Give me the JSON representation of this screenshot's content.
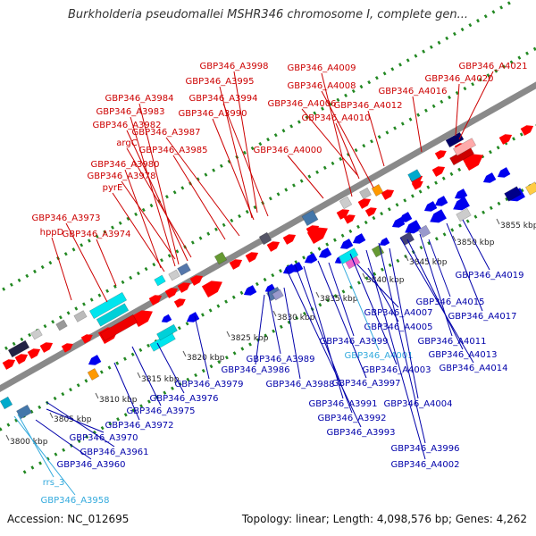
{
  "title": "Burkholderia pseudomallei MSHR346 chromosome I, complete gen...",
  "footer": {
    "accession": "Accession: NC_012695",
    "topology": "Topology: linear; Length: 4,098,576 bp; Genes: 4,262"
  },
  "colors": {
    "top_label": "#cc0000",
    "bottom_label": "#0000aa",
    "highlight_label": "#33aadd",
    "axis": "#8a8a8a",
    "track_dots": "#228822",
    "gene_red": "#ff0000",
    "gene_blue": "#0000ee"
  },
  "ticks": [
    "3800 kbp",
    "3805 kbp",
    "3810 kbp",
    "3815 kbp",
    "3820 kbp",
    "3825 kbp",
    "3830 kbp",
    "3835 kbp",
    "3840 kbp",
    "3845 kbp",
    "3850 kbp",
    "3855 kbp"
  ],
  "top_labels": [
    "GBP346_A3998",
    "GBP346_A3995",
    "GBP346_A3994",
    "GBP346_A3990",
    "GBP346_A3984",
    "GBP346_A3983",
    "GBP346_A3982",
    "argC",
    "GBP346_A3987",
    "GBP346_A3985",
    "GBP346_A3980",
    "GBP346_A3978",
    "pyrE",
    "GBP346_A3973",
    "GBP346_A3974",
    "hppD",
    "GBP346_A4009",
    "GBP346_A4008",
    "GBP346_A4006",
    "GBP346_A4010",
    "GBP346_A4012",
    "GBP346_A4016",
    "GBP346_A4020",
    "GBP346_A4021",
    "GBP346_A4000"
  ],
  "bottom_labels": [
    "GBP346_A4019",
    "GBP346_A4015",
    "GBP346_A4017",
    "GBP346_A4007",
    "GBP346_A4005",
    "GBP346_A4011",
    "GBP346_A4013",
    "GBP346_A4014",
    "GBP346_A3999",
    "GBP346_A4001",
    "GBP346_A4003",
    "GBP346_A3997",
    "GBP346_A3989",
    "GBP346_A3988",
    "GBP346_A3986",
    "GBP346_A4004",
    "GBP346_A3991",
    "GBP346_A3992",
    "GBP346_A3993",
    "GBP346_A3996",
    "GBP346_A4002",
    "GBP346_A3979",
    "GBP346_A3976",
    "GBP346_A3975",
    "GBP346_A3972",
    "GBP346_A3970",
    "GBP346_A3961",
    "GBP346_A3960",
    "rrs_3",
    "GBP346_A3958"
  ],
  "highlight_labels": [
    "GBP346_A4001",
    "rrs_3",
    "GBP346_A3958"
  ]
}
